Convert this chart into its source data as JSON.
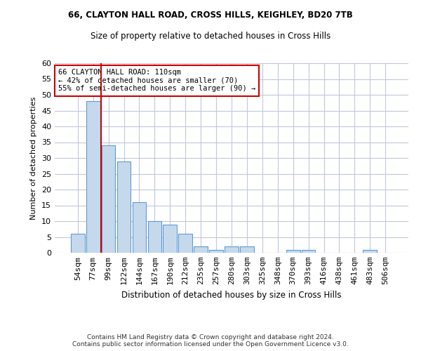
{
  "title1": "66, CLAYTON HALL ROAD, CROSS HILLS, KEIGHLEY, BD20 7TB",
  "title2": "Size of property relative to detached houses in Cross Hills",
  "xlabel": "Distribution of detached houses by size in Cross Hills",
  "ylabel": "Number of detached properties",
  "categories": [
    "54sqm",
    "77sqm",
    "99sqm",
    "122sqm",
    "144sqm",
    "167sqm",
    "190sqm",
    "212sqm",
    "235sqm",
    "257sqm",
    "280sqm",
    "303sqm",
    "325sqm",
    "348sqm",
    "370sqm",
    "393sqm",
    "416sqm",
    "438sqm",
    "461sqm",
    "483sqm",
    "506sqm"
  ],
  "values": [
    6,
    48,
    34,
    29,
    16,
    10,
    9,
    6,
    2,
    1,
    2,
    2,
    0,
    0,
    1,
    1,
    0,
    0,
    0,
    1,
    0
  ],
  "bar_color": "#c6d9ec",
  "bar_edge_color": "#5b9bd5",
  "annotation_text": "66 CLAYTON HALL ROAD: 110sqm\n← 42% of detached houses are smaller (70)\n55% of semi-detached houses are larger (90) →",
  "annotation_box_color": "#ffffff",
  "annotation_box_edge_color": "#cc0000",
  "red_line_x": 1.5,
  "ylim": [
    0,
    60
  ],
  "yticks": [
    0,
    5,
    10,
    15,
    20,
    25,
    30,
    35,
    40,
    45,
    50,
    55,
    60
  ],
  "footer": "Contains HM Land Registry data © Crown copyright and database right 2024.\nContains public sector information licensed under the Open Government Licence v3.0.",
  "background_color": "#ffffff",
  "grid_color": "#c0c8d8"
}
